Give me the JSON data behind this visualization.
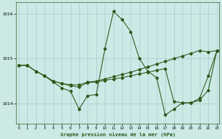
{
  "title": "Graphe pression niveau de la mer (hPa)",
  "bg_color": "#cce9e6",
  "grid_color": "#9fcfcc",
  "line_color": "#2d5a1b",
  "xlim": [
    -0.3,
    23.3
  ],
  "ylim": [
    1013.55,
    1016.25
  ],
  "yticks": [
    1014,
    1015,
    1016
  ],
  "xticks": [
    0,
    1,
    2,
    3,
    4,
    5,
    6,
    7,
    8,
    9,
    10,
    11,
    12,
    13,
    14,
    15,
    16,
    17,
    18,
    19,
    20,
    21,
    22,
    23
  ],
  "line1_x": [
    0,
    1,
    2,
    3,
    4,
    5,
    6,
    7,
    8,
    9,
    10,
    11,
    12,
    13,
    14,
    15,
    16,
    17,
    18,
    19,
    20,
    21,
    22,
    23
  ],
  "line1_y": [
    1014.85,
    1014.85,
    1014.72,
    1014.62,
    1014.5,
    1014.45,
    1014.4,
    1014.37,
    1014.47,
    1014.48,
    1014.52,
    1014.55,
    1014.58,
    1014.62,
    1014.66,
    1014.7,
    1014.74,
    1014.78,
    1014.05,
    1014.02,
    1014.02,
    1014.08,
    1014.3,
    1015.18
  ],
  "line2_x": [
    0,
    1,
    2,
    3,
    4,
    5,
    6,
    7,
    8,
    9,
    10,
    11,
    12,
    13,
    14,
    15,
    16,
    17,
    18,
    19,
    20,
    21,
    22,
    23
  ],
  "line2_y": [
    1014.85,
    1014.85,
    1014.72,
    1014.62,
    1014.48,
    1014.35,
    1014.28,
    1013.88,
    1014.18,
    1014.2,
    1015.22,
    1016.05,
    1015.87,
    1015.6,
    1015.0,
    1014.72,
    1014.58,
    1013.75,
    1013.88,
    1014.02,
    1014.02,
    1014.12,
    1014.62,
    1015.18
  ],
  "line3_x": [
    0,
    1,
    2,
    3,
    4,
    5,
    6,
    7,
    8,
    9,
    10,
    11,
    12,
    13,
    14,
    15,
    16,
    17,
    18,
    19,
    20,
    21,
    22,
    23
  ],
  "line3_y": [
    1014.85,
    1014.85,
    1014.72,
    1014.62,
    1014.5,
    1014.45,
    1014.42,
    1014.42,
    1014.48,
    1014.5,
    1014.55,
    1014.6,
    1014.65,
    1014.7,
    1014.76,
    1014.82,
    1014.88,
    1014.94,
    1015.0,
    1015.06,
    1015.12,
    1015.18,
    1015.15,
    1015.18
  ]
}
